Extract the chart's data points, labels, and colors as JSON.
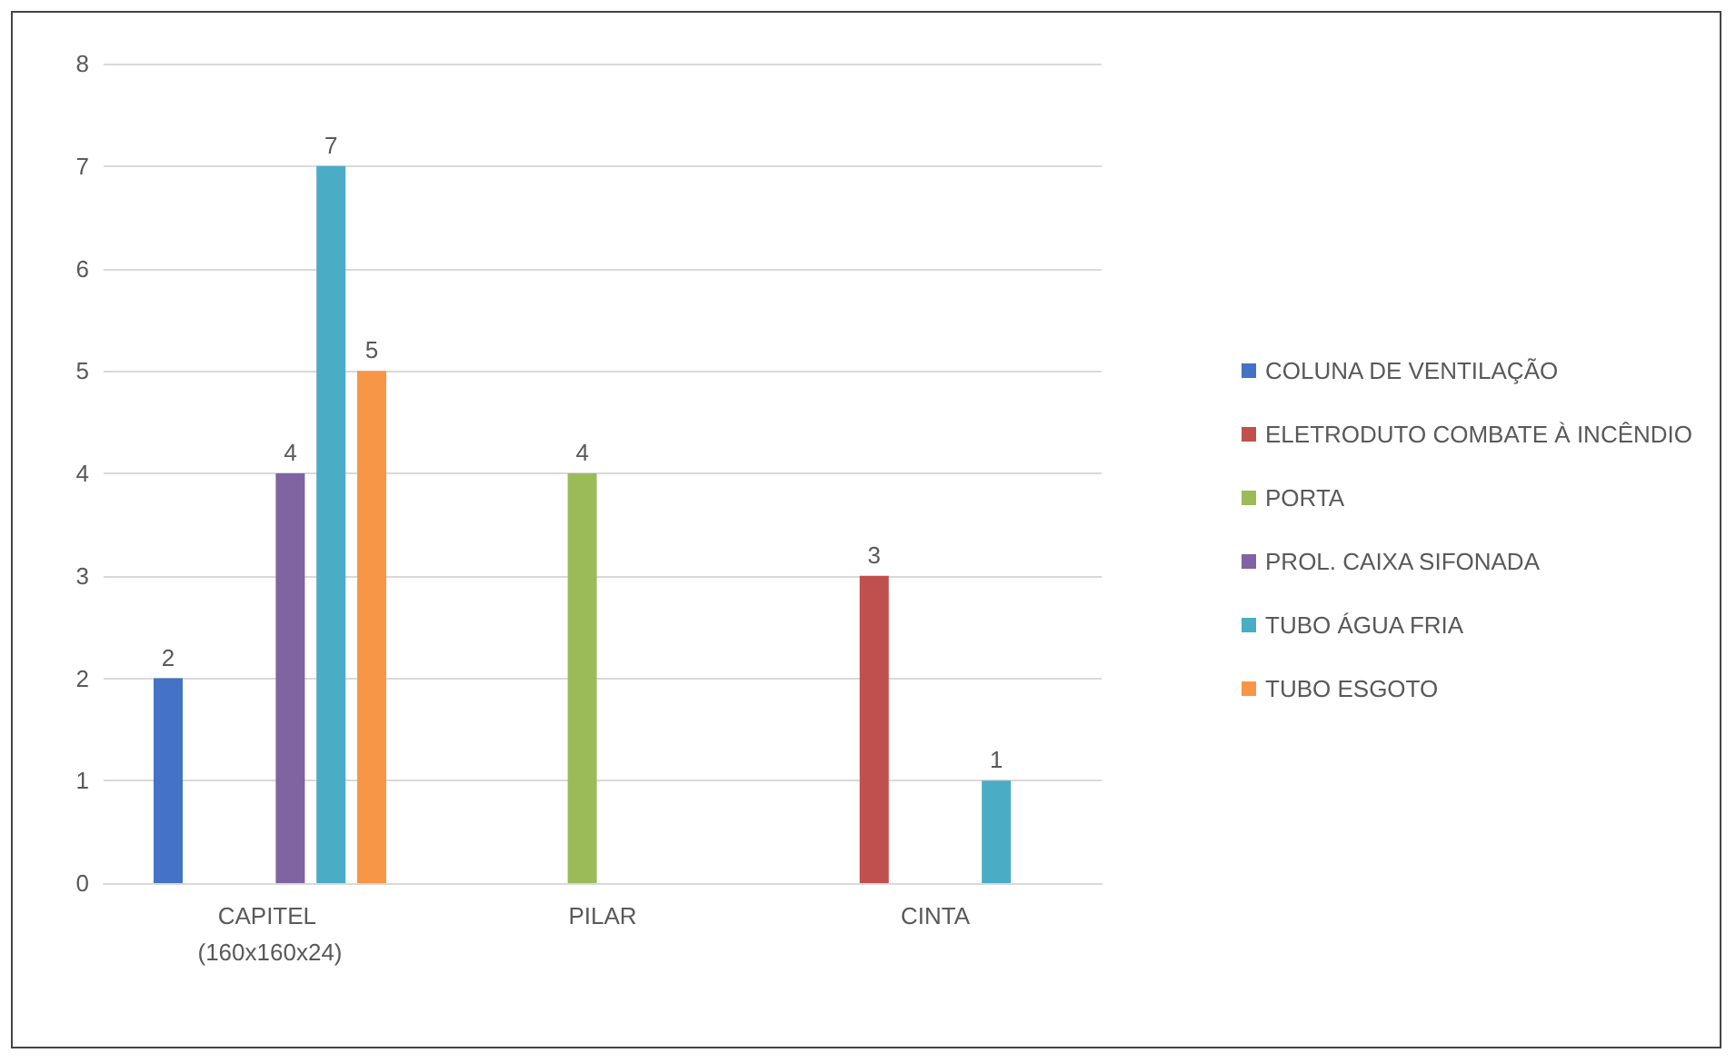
{
  "chart_data": {
    "type": "bar",
    "categories": [
      "CAPITEL (160x160x24)",
      "PILAR",
      "CINTA"
    ],
    "series": [
      {
        "name": "COLUNA DE VENTILAÇÃO",
        "color": "#4472c4",
        "values": [
          2,
          null,
          null
        ]
      },
      {
        "name": "ELETRODUTO COMBATE À INCÊNDIO",
        "color": "#c0504d",
        "values": [
          null,
          null,
          3
        ]
      },
      {
        "name": "PORTA",
        "color": "#9bbb59",
        "values": [
          null,
          4,
          null
        ]
      },
      {
        "name": "PROL. CAIXA SIFONADA",
        "color": "#8064a2",
        "values": [
          4,
          null,
          null
        ]
      },
      {
        "name": "TUBO ÁGUA FRIA",
        "color": "#4bacc6",
        "values": [
          7,
          null,
          1
        ]
      },
      {
        "name": "TUBO ESGOTO",
        "color": "#f79646",
        "values": [
          5,
          null,
          null
        ]
      }
    ],
    "ylim": [
      0,
      8
    ],
    "yticks": [
      0,
      1,
      2,
      3,
      4,
      5,
      6,
      7,
      8
    ],
    "grid": "y",
    "legend": "right",
    "data_labels": true
  }
}
